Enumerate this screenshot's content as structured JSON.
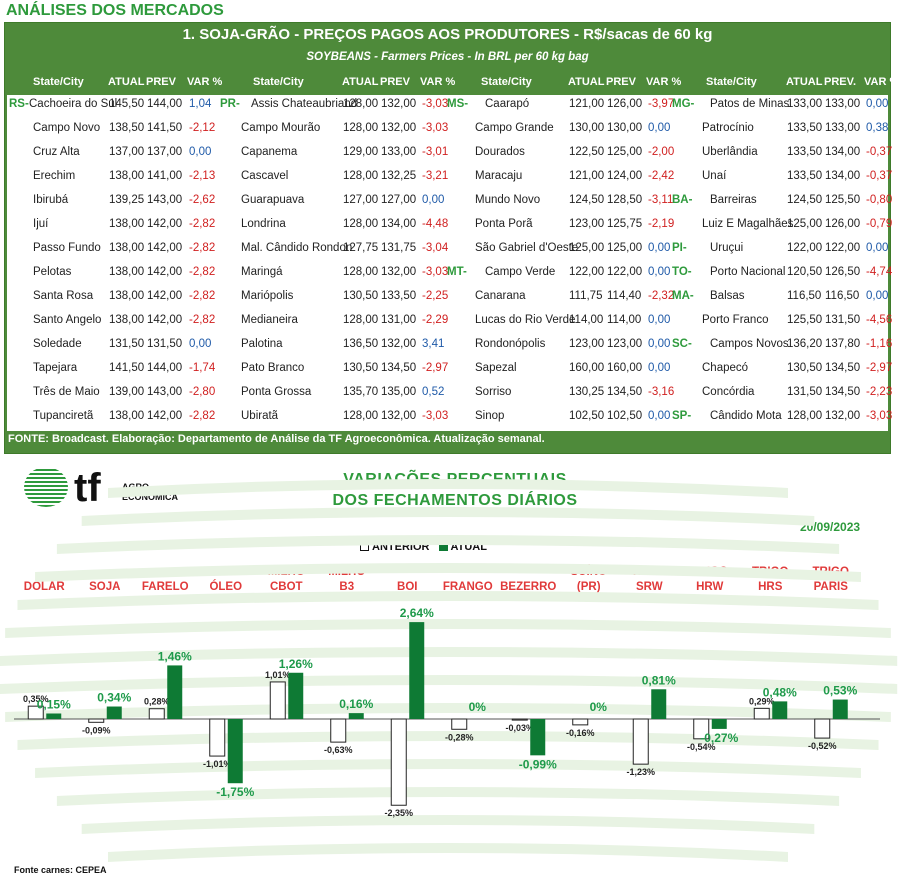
{
  "page_title": "ANÁLISES DOS MERCADOS",
  "table": {
    "title": "1. SOJA-GRÃO - PREÇOS PAGOS AOS PRODUTORES - R$/sacas de 60 kg",
    "subtitle": "SOYBEANS - Farmers Prices - In BRL per 60 kg bag",
    "headers": [
      [
        "State/City",
        "ATUAL",
        "PREV",
        "VAR %"
      ],
      [
        "State/City",
        "ATUAL",
        "PREV",
        "VAR %"
      ],
      [
        "State/City",
        "ATUAL",
        "PREV",
        "VAR %"
      ],
      [
        "State/City",
        "ATUAL",
        "PREV.",
        "VAR %"
      ]
    ],
    "columns": [
      [
        {
          "state": "RS-",
          "city": "Cachoeira do Sul",
          "atual": "145,50",
          "prev": "144,00",
          "var": "1,04"
        },
        {
          "state": "",
          "city": "Campo Novo",
          "atual": "138,50",
          "prev": "141,50",
          "var": "-2,12"
        },
        {
          "state": "",
          "city": "Cruz Alta",
          "atual": "137,00",
          "prev": "137,00",
          "var": "0,00"
        },
        {
          "state": "",
          "city": "Erechim",
          "atual": "138,00",
          "prev": "141,00",
          "var": "-2,13"
        },
        {
          "state": "",
          "city": "Ibirubá",
          "atual": "139,25",
          "prev": "143,00",
          "var": "-2,62"
        },
        {
          "state": "",
          "city": "Ijuí",
          "atual": "138,00",
          "prev": "142,00",
          "var": "-2,82"
        },
        {
          "state": "",
          "city": "Passo Fundo",
          "atual": "138,00",
          "prev": "142,00",
          "var": "-2,82"
        },
        {
          "state": "",
          "city": "Pelotas",
          "atual": "138,00",
          "prev": "142,00",
          "var": "-2,82"
        },
        {
          "state": "",
          "city": "Santa Rosa",
          "atual": "138,00",
          "prev": "142,00",
          "var": "-2,82"
        },
        {
          "state": "",
          "city": "Santo Angelo",
          "atual": "138,00",
          "prev": "142,00",
          "var": "-2,82"
        },
        {
          "state": "",
          "city": "Soledade",
          "atual": "131,50",
          "prev": "131,50",
          "var": "0,00"
        },
        {
          "state": "",
          "city": "Tapejara",
          "atual": "141,50",
          "prev": "144,00",
          "var": "-1,74"
        },
        {
          "state": "",
          "city": "Três de Maio",
          "atual": "139,00",
          "prev": "143,00",
          "var": "-2,80"
        },
        {
          "state": "",
          "city": "Tupanciretã",
          "atual": "138,00",
          "prev": "142,00",
          "var": "-2,82"
        }
      ],
      [
        {
          "state": "PR-",
          "city": "Assis Chateaubriand",
          "atual": "128,00",
          "prev": "132,00",
          "var": "-3,03"
        },
        {
          "state": "",
          "city": "Campo Mourão",
          "atual": "128,00",
          "prev": "132,00",
          "var": "-3,03"
        },
        {
          "state": "",
          "city": "Capanema",
          "atual": "129,00",
          "prev": "133,00",
          "var": "-3,01"
        },
        {
          "state": "",
          "city": "Cascavel",
          "atual": "128,00",
          "prev": "132,25",
          "var": "-3,21"
        },
        {
          "state": "",
          "city": "Guarapuava",
          "atual": "127,00",
          "prev": "127,00",
          "var": "0,00"
        },
        {
          "state": "",
          "city": "Londrina",
          "atual": "128,00",
          "prev": "134,00",
          "var": "-4,48"
        },
        {
          "state": "",
          "city": "Mal. Cândido Rondon",
          "atual": "127,75",
          "prev": "131,75",
          "var": "-3,04"
        },
        {
          "state": "",
          "city": "Maringá",
          "atual": "128,00",
          "prev": "132,00",
          "var": "-3,03"
        },
        {
          "state": "",
          "city": "Mariópolis",
          "atual": "130,50",
          "prev": "133,50",
          "var": "-2,25"
        },
        {
          "state": "",
          "city": "Medianeira",
          "atual": "128,00",
          "prev": "131,00",
          "var": "-2,29"
        },
        {
          "state": "",
          "city": "Palotina",
          "atual": "136,50",
          "prev": "132,00",
          "var": "3,41"
        },
        {
          "state": "",
          "city": "Pato Branco",
          "atual": "130,50",
          "prev": "134,50",
          "var": "-2,97"
        },
        {
          "state": "",
          "city": "Ponta Grossa",
          "atual": "135,70",
          "prev": "135,00",
          "var": "0,52"
        },
        {
          "state": "",
          "city": "Ubiratã",
          "atual": "128,00",
          "prev": "132,00",
          "var": "-3,03"
        }
      ],
      [
        {
          "state": "MS-",
          "city": "Caarapó",
          "atual": "121,00",
          "prev": "126,00",
          "var": "-3,97"
        },
        {
          "state": "",
          "city": "Campo Grande",
          "atual": "130,00",
          "prev": "130,00",
          "var": "0,00"
        },
        {
          "state": "",
          "city": "Dourados",
          "atual": "122,50",
          "prev": "125,00",
          "var": "-2,00"
        },
        {
          "state": "",
          "city": "Maracaju",
          "atual": "121,00",
          "prev": "124,00",
          "var": "-2,42"
        },
        {
          "state": "",
          "city": "Mundo Novo",
          "atual": "124,50",
          "prev": "128,50",
          "var": "-3,11"
        },
        {
          "state": "",
          "city": "Ponta Porã",
          "atual": "123,00",
          "prev": "125,75",
          "var": "-2,19"
        },
        {
          "state": "",
          "city": "São Gabriel d'Oeste",
          "atual": "125,00",
          "prev": "125,00",
          "var": "0,00"
        },
        {
          "state": "MT-",
          "city": "Campo Verde",
          "atual": "122,00",
          "prev": "122,00",
          "var": "0,00"
        },
        {
          "state": "",
          "city": "Canarana",
          "atual": "111,75",
          "prev": "114,40",
          "var": "-2,32"
        },
        {
          "state": "",
          "city": "Lucas do Rio Verde",
          "atual": "114,00",
          "prev": "114,00",
          "var": "0,00"
        },
        {
          "state": "",
          "city": "Rondonópolis",
          "atual": "123,00",
          "prev": "123,00",
          "var": "0,00"
        },
        {
          "state": "",
          "city": "Sapezal",
          "atual": "160,00",
          "prev": "160,00",
          "var": "0,00"
        },
        {
          "state": "",
          "city": "Sorriso",
          "atual": "130,25",
          "prev": "134,50",
          "var": "-3,16"
        },
        {
          "state": "",
          "city": "Sinop",
          "atual": "102,50",
          "prev": "102,50",
          "var": "0,00"
        }
      ],
      [
        {
          "state": "MG-",
          "city": "Patos de Minas",
          "atual": "133,00",
          "prev": "133,00",
          "var": "0,00"
        },
        {
          "state": "",
          "city": "Patrocínio",
          "atual": "133,50",
          "prev": "133,00",
          "var": "0,38"
        },
        {
          "state": "",
          "city": "Uberlândia",
          "atual": "133,50",
          "prev": "134,00",
          "var": "-0,37"
        },
        {
          "state": "",
          "city": "Unaí",
          "atual": "133,50",
          "prev": "134,00",
          "var": "-0,37"
        },
        {
          "state": "BA-",
          "city": "Barreiras",
          "atual": "124,50",
          "prev": "125,50",
          "var": "-0,80"
        },
        {
          "state": "",
          "city": "Luiz E Magalhães",
          "atual": "125,00",
          "prev": "126,00",
          "var": "-0,79"
        },
        {
          "state": "PI-",
          "city": "Uruçui",
          "atual": "122,00",
          "prev": "122,00",
          "var": "0,00"
        },
        {
          "state": "TO-",
          "city": "Porto Nacional",
          "atual": "120,50",
          "prev": "126,50",
          "var": "-4,74"
        },
        {
          "state": "MA-",
          "city": "Balsas",
          "atual": "116,50",
          "prev": "116,50",
          "var": "0,00"
        },
        {
          "state": "",
          "city": "Porto Franco",
          "atual": "125,50",
          "prev": "131,50",
          "var": "-4,56"
        },
        {
          "state": "SC-",
          "city": "Campos Novos",
          "atual": "136,20",
          "prev": "137,80",
          "var": "-1,16"
        },
        {
          "state": "",
          "city": "Chapecó",
          "atual": "130,50",
          "prev": "134,50",
          "var": "-2,97"
        },
        {
          "state": "",
          "city": "Concórdia",
          "atual": "131,50",
          "prev": "134,50",
          "var": "-2,23"
        },
        {
          "state": "SP-",
          "city": "Cândido Mota",
          "atual": "128,00",
          "prev": "132,00",
          "var": "-3,03"
        }
      ]
    ],
    "source": "FONTE: Broadcast. Elaboração: Departamento de Análise da TF Agroeconômica. Atualização semanal."
  },
  "logo": {
    "mark": "tf",
    "line1": "AGRO",
    "line2": "ECONÔMICA"
  },
  "colors": {
    "green": "#2e9a3c",
    "dark_green": "#0e7a34",
    "red": "#d01f1f",
    "blue": "#1f5aa8",
    "panel": "#4e8a3a"
  },
  "chart_data": {
    "type": "bar",
    "title_line1": "VARIAÇÕES PERCENTUAIS",
    "title_line2": "DOS FECHAMENTOS DIÁRIOS",
    "date": "20/09/2023",
    "legend": [
      "ANTERIOR",
      "ATUAL"
    ],
    "legend_position": "top-center",
    "categories": [
      [
        "",
        "DÓLAR"
      ],
      [
        "",
        "SOJA"
      ],
      [
        "",
        "FARELO"
      ],
      [
        "",
        "ÓLEO"
      ],
      [
        "MILHO",
        "CBOT"
      ],
      [
        "MILHO",
        "B3"
      ],
      [
        "",
        "BOI"
      ],
      [
        "",
        "FRANGO"
      ],
      [
        "",
        "BEZERRO"
      ],
      [
        "SUÍNO",
        "(PR)"
      ],
      [
        "TRIGO",
        "SRW"
      ],
      [
        "TRIGO",
        "HRW"
      ],
      [
        "TRIGO",
        "HRS"
      ],
      [
        "TRIGO",
        "PARIS"
      ]
    ],
    "series": [
      {
        "name": "ANTERIOR",
        "values": [
          0.35,
          -0.09,
          0.28,
          -1.01,
          1.01,
          -0.63,
          -2.35,
          -0.28,
          -0.03,
          -0.16,
          -1.23,
          -0.54,
          0.29,
          -0.52
        ],
        "labels": [
          "0,35%",
          "-0,09%",
          "0,28%",
          "-1,01%",
          "1,01%",
          "-0,63%",
          "-2,35%",
          "-0,28%",
          "-0,03%",
          "-0,16%",
          "-1,23%",
          "-0,54%",
          "0,29%",
          "-0,52%"
        ]
      },
      {
        "name": "ATUAL",
        "values": [
          0.15,
          0.34,
          1.46,
          -1.75,
          1.26,
          0.16,
          2.64,
          0,
          -0.99,
          0,
          0.81,
          -0.27,
          0.48,
          0.53
        ],
        "labels": [
          "0,15%",
          "0,34%",
          "1,46%",
          "-1,75%",
          "1,26%",
          "0,16%",
          "2,64%",
          "0%",
          "-0,99%",
          "0%",
          "0,81%",
          "-0,27%",
          "0,48%",
          "0,53%"
        ]
      }
    ],
    "ylim": [
      -2.5,
      2.8
    ],
    "grid": false
  },
  "footnote": "Fonte carnes: CEPEA"
}
